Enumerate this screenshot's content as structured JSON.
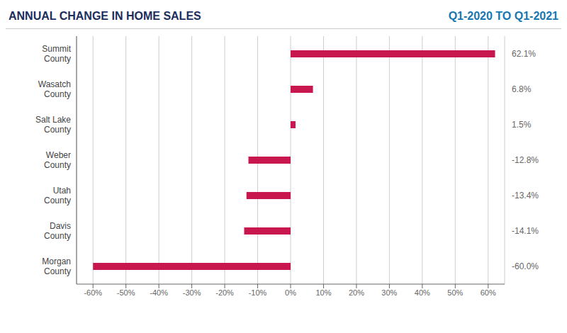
{
  "chart_data": {
    "type": "bar",
    "orientation": "horizontal",
    "title": "ANNUAL CHANGE IN HOME SALES",
    "subtitle": "Q1-2020 TO Q1-2021",
    "categories": [
      "Summit\nCounty",
      "Wasatch\nCounty",
      "Salt Lake\nCounty",
      "Weber\nCounty",
      "Utah\nCounty",
      "Davis\nCounty",
      "Morgan\nCounty"
    ],
    "values": [
      62.1,
      6.8,
      1.5,
      -12.8,
      -13.4,
      -14.1,
      -60.0
    ],
    "value_labels": [
      "62.1%",
      "6.8%",
      "1.5%",
      "-12.8%",
      "-13.4%",
      "-14.1%",
      "-60.0%"
    ],
    "data_labels": true,
    "color": "#C8174F",
    "xlim": [
      -65,
      65
    ],
    "xticks": [
      {
        "value": -60,
        "label": "-60%"
      },
      {
        "value": -50,
        "label": "-50%"
      },
      {
        "value": -40,
        "label": "-40%"
      },
      {
        "value": -30,
        "label": "-30%"
      },
      {
        "value": -20,
        "label": "-20%"
      },
      {
        "value": -10,
        "label": "-10%"
      },
      {
        "value": 0,
        "label": "0%"
      },
      {
        "value": 10,
        "label": "10%"
      },
      {
        "value": 20,
        "label": "20%"
      },
      {
        "value": 30,
        "label": "30%"
      },
      {
        "value": 40,
        "label": "40%"
      },
      {
        "value": 50,
        "label": "50%"
      },
      {
        "value": 60,
        "label": "60%"
      }
    ],
    "grid": true
  }
}
